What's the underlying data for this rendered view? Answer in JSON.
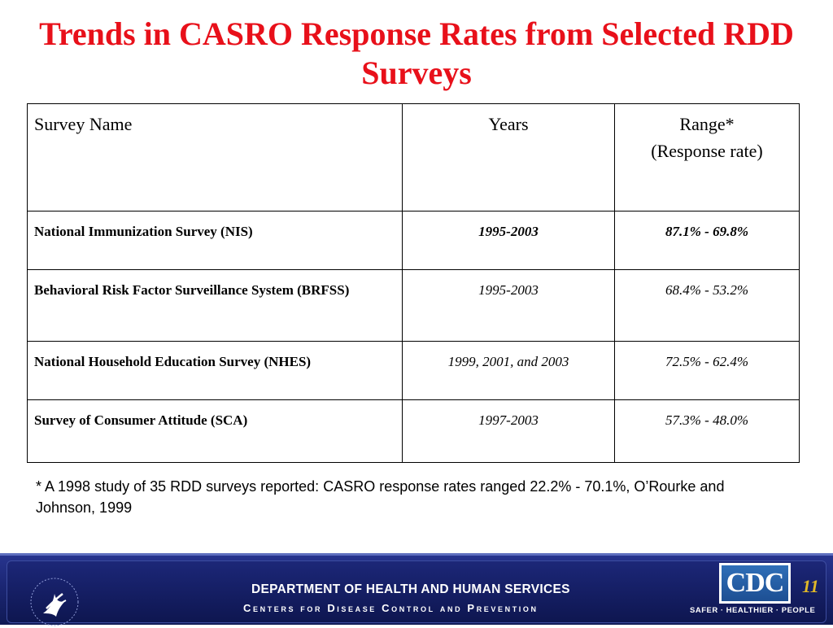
{
  "title": "Trends in CASRO Response Rates from Selected RDD Surveys",
  "table": {
    "headers": {
      "survey_name": "Survey Name",
      "years": "Years",
      "range_line1": "Range*",
      "range_line2": "(Response rate)"
    },
    "rows": [
      {
        "name": "National Immunization Survey (NIS)",
        "years": "1995-2003",
        "range": "87.1% - 69.8%"
      },
      {
        "name": "Behavioral Risk Factor Surveillance System (BRFSS)",
        "years": "1995-2003",
        "range": "68.4%  - 53.2%"
      },
      {
        "name": "National Household Education Survey (NHES)",
        "years": "1999, 2001, and 2003",
        "range": "72.5% - 62.4%"
      },
      {
        "name": "Survey of Consumer Attitude  (SCA)",
        "years": "1997-2003",
        "range": "57.3% - 48.0%"
      }
    ]
  },
  "footnote": "* A 1998 study of 35 RDD surveys reported: CASRO response rates ranged 22.2% - 70.1%, O’Rourke and Johnson, 1999",
  "footer": {
    "department": "DEPARTMENT OF HEALTH AND HUMAN SERVICES",
    "centers": "Centers for Disease Control and Prevention",
    "logo_text": "CDC",
    "tagline": "SAFER · HEALTHIER · PEOPLE",
    "page_number": "11"
  },
  "colors": {
    "title": "#e8101a",
    "footer_bar": "#1b2673",
    "page_number": "#e0b828"
  },
  "icons": {
    "hhs_logo": "hhs-eagle-icon"
  }
}
